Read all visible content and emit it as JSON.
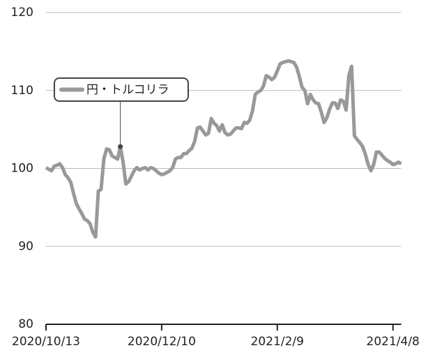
{
  "chart_data": {
    "type": "line",
    "categories": [
      "2020/10/13",
      null,
      null,
      null,
      null,
      null,
      null,
      null,
      null,
      null,
      null,
      null,
      null,
      null,
      null,
      null,
      null,
      null,
      null,
      null,
      null,
      null,
      null,
      null,
      null,
      null,
      null,
      null,
      null,
      null,
      null,
      null,
      null,
      null,
      null,
      null,
      null,
      null,
      null,
      null,
      null,
      null,
      "2020/12/10",
      null,
      null,
      null,
      null,
      null,
      null,
      null,
      null,
      null,
      null,
      null,
      null,
      null,
      null,
      null,
      null,
      null,
      null,
      null,
      null,
      null,
      null,
      null,
      null,
      null,
      null,
      null,
      null,
      null,
      null,
      null,
      null,
      null,
      null,
      null,
      null,
      null,
      null,
      null,
      null,
      null,
      "2021/2/9",
      null,
      null,
      null,
      null,
      null,
      null,
      null,
      null,
      null,
      null,
      null,
      null,
      null,
      null,
      null,
      null,
      null,
      null,
      null,
      null,
      null,
      null,
      null,
      null,
      null,
      null,
      null,
      null,
      null,
      null,
      null,
      null,
      null,
      null,
      null,
      null,
      null,
      null,
      null,
      null,
      null,
      "2021/4/8",
      null,
      null,
      null
    ],
    "series": [
      {
        "name": "円・トルコリラ",
        "color": "#999999",
        "values": [
          100.1,
          99.9,
          99.7,
          100.3,
          100.4,
          100.6,
          100.1,
          99.2,
          98.8,
          98.2,
          96.8,
          95.5,
          94.8,
          94.2,
          93.5,
          93.3,
          92.9,
          91.8,
          91.2,
          97.1,
          97.3,
          101.2,
          102.5,
          102.4,
          101.6,
          101.4,
          101.2,
          102.8,
          100.8,
          98,
          98.3,
          99,
          99.7,
          100.1,
          99.8,
          100,
          100.1,
          99.8,
          100.1,
          100,
          99.7,
          99.4,
          99.2,
          99.3,
          99.5,
          99.7,
          100.1,
          101.2,
          101.4,
          101.4,
          101.9,
          101.9,
          102.3,
          102.6,
          103.5,
          105.2,
          105.3,
          104.8,
          104.3,
          104.5,
          106.4,
          105.8,
          105.5,
          104.8,
          105.6,
          104.6,
          104.3,
          104.4,
          104.8,
          105.2,
          105.2,
          105.1,
          105.9,
          105.8,
          106.2,
          107.4,
          109.5,
          109.8,
          110,
          110.6,
          111.9,
          111.7,
          111.4,
          111.7,
          112.5,
          113.4,
          113.6,
          113.7,
          113.8,
          113.7,
          113.6,
          113,
          111.8,
          110.4,
          110,
          108.3,
          109.5,
          108.8,
          108.4,
          108.3,
          107.2,
          105.9,
          106.5,
          107.6,
          108.4,
          108.4,
          107.7,
          108.8,
          108.6,
          107.5,
          111.9,
          113.1,
          104.2,
          103.7,
          103.3,
          102.8,
          101.8,
          100.5,
          99.7,
          100.5,
          102.1,
          102.1,
          101.7,
          101.3,
          101,
          100.8,
          100.5,
          100.6,
          100.8,
          100.6
        ]
      }
    ],
    "ylim": [
      80,
      120
    ],
    "yticks": [
      80,
      90,
      100,
      110,
      120
    ],
    "grid": true
  }
}
